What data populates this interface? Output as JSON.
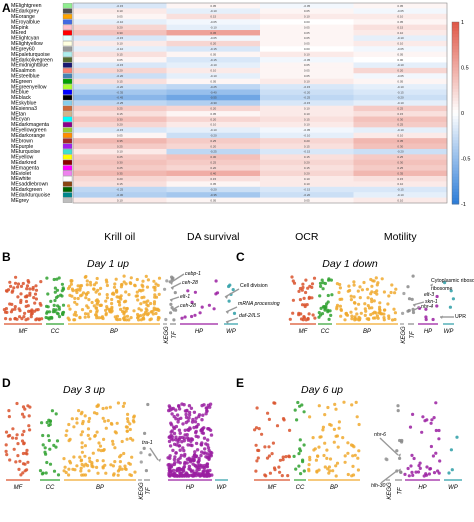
{
  "panel_letters": [
    "A",
    "B",
    "C",
    "D",
    "E"
  ],
  "colorbar_ticks": [
    "1",
    "0.5",
    "0",
    "-0.5",
    "-1"
  ],
  "colors": {
    "positive": "#e05a4a",
    "neutral": "#ffffff",
    "negative": "#2f7ed8",
    "MF": "#d9522b",
    "CC": "#2fa12f",
    "BP": "#f0a92e",
    "KEGG": "#999999",
    "TF": "#888888",
    "HP": "#9a1fa1",
    "WP": "#2b9da6"
  },
  "chart_data": [
    {
      "type": "heatmap",
      "panel": "A",
      "columns": [
        "Krill oil",
        "DA survival",
        "OCR",
        "Motility"
      ],
      "rows": [
        "MElightgreen",
        "MEdarkgrey",
        "MEorange",
        "MEroyalblue",
        "MEpink",
        "MEred",
        "MElightcyan",
        "MElightyellow",
        "MEgrey60",
        "MEpaleturquoise",
        "MEdarkolivegreen",
        "MEmidnightblue",
        "MEsalmon",
        "MEsteelblue",
        "MEgreen",
        "MEgreenyellow",
        "MEblue",
        "MEblack",
        "MEskyblue",
        "MEsienna3",
        "MEtan",
        "MEcyan",
        "MEdarkmagenta",
        "MEyellowgreen",
        "MEdarkorange",
        "MEbrown",
        "MEpurple",
        "MEturquoise",
        "MEyellow",
        "MEdarkred",
        "MEmagenta",
        "MEviolet",
        "MEwhite",
        "MEsaddlebrown",
        "MEdarkgreen",
        "MEdarkturquoise",
        "MEgrey"
      ],
      "row_colors": [
        "#90ee90",
        "#505050",
        "#ffa500",
        "#4169e1",
        "#ffc0cb",
        "#ff0000",
        "#e0ffff",
        "#ffffe0",
        "#999999",
        "#afeeee",
        "#556b2f",
        "#191970",
        "#fa8072",
        "#4682b4",
        "#00a000",
        "#adff2f",
        "#0000ff",
        "#000000",
        "#87ceeb",
        "#cd6839",
        "#d2b48c",
        "#00ffff",
        "#8b008b",
        "#9acd32",
        "#ff8c00",
        "#a52a2a",
        "#a020f0",
        "#40e0d0",
        "#ffff00",
        "#8b0000",
        "#ff00ff",
        "#ee82ee",
        "#ffffff",
        "#8b4513",
        "#006400",
        "#00868b",
        "#bebebe"
      ],
      "values": [
        [
          -0.15,
          0.05,
          -0.05,
          0.05
        ],
        [
          0.1,
          -0.1,
          0.05,
          -0.05
        ],
        [
          0.05,
          0.15,
          0.1,
          0.1
        ],
        [
          -0.1,
          -0.05,
          0.0,
          0.05
        ],
        [
          0.2,
          -0.1,
          0.05,
          0.15
        ],
        [
          0.3,
          0.45,
          0.05,
          0.1
        ],
        [
          -0.15,
          -0.05,
          0.05,
          -0.1
        ],
        [
          0.1,
          0.2,
          0.05,
          0.1
        ],
        [
          -0.1,
          -0.15,
          0.0,
          -0.05
        ],
        [
          0.15,
          0.05,
          0.1,
          0.05
        ],
        [
          0.05,
          -0.15,
          -0.05,
          0.0
        ],
        [
          -0.15,
          -0.1,
          0.05,
          -0.1
        ],
        [
          0.2,
          0.1,
          0.05,
          0.2
        ],
        [
          -0.2,
          -0.1,
          0.05,
          -0.05
        ],
        [
          0.15,
          0.05,
          0.1,
          0.05
        ],
        [
          -0.2,
          -0.25,
          -0.15,
          -0.1
        ],
        [
          -0.35,
          -0.4,
          -0.2,
          -0.15
        ],
        [
          -0.45,
          -0.55,
          -0.25,
          -0.2
        ],
        [
          -0.25,
          -0.3,
          -0.15,
          -0.1
        ],
        [
          0.25,
          0.2,
          0.1,
          0.25
        ],
        [
          0.15,
          0.05,
          0.1,
          0.15
        ],
        [
          0.3,
          0.2,
          0.15,
          0.3
        ],
        [
          0.2,
          0.1,
          0.1,
          0.25
        ],
        [
          -0.15,
          -0.1,
          -0.05,
          -0.1
        ],
        [
          0.05,
          -0.2,
          -0.1,
          0.1
        ],
        [
          0.35,
          0.25,
          0.2,
          0.35
        ],
        [
          0.25,
          0.2,
          0.15,
          0.3
        ],
        [
          0.1,
          -0.25,
          -0.15,
          -0.2
        ],
        [
          0.25,
          0.3,
          0.15,
          0.25
        ],
        [
          0.3,
          0.25,
          0.2,
          0.3
        ],
        [
          0.25,
          0.2,
          0.15,
          0.25
        ],
        [
          0.35,
          0.4,
          0.2,
          0.35
        ],
        [
          0.2,
          0.15,
          0.1,
          0.15
        ],
        [
          0.15,
          0.05,
          0.1,
          0.1
        ],
        [
          -0.25,
          -0.2,
          -0.15,
          -0.15
        ],
        [
          -0.3,
          -0.35,
          -0.2,
          -0.1
        ],
        [
          0.1,
          0.05,
          0.05,
          0.1
        ]
      ],
      "colorbar_range": [
        -1,
        1
      ]
    },
    {
      "type": "scatter",
      "panel": "B",
      "title": "Day 1 up",
      "categories": [
        "MF",
        "CC",
        "BP",
        "KEGG",
        "TF",
        "HP",
        "WP"
      ],
      "annotations": [
        "cebp-1",
        "ceh-28",
        "elt-1",
        "ceh-28",
        "Cell division",
        "mRNA processing",
        "daf-2/ILS"
      ]
    },
    {
      "type": "scatter",
      "panel": "C",
      "title": "Day 1 down",
      "categories": [
        "MF",
        "CC",
        "BP",
        "KEGG",
        "TF",
        "HP",
        "WP"
      ],
      "annotations": [
        "Cytoplasmic ribosome",
        "elt-3",
        "skn-1",
        "nhr-4",
        "UPR"
      ]
    },
    {
      "type": "scatter",
      "panel": "D",
      "title": "Day 3 up",
      "categories": [
        "MF",
        "CC",
        "BP",
        "KEGG",
        "TF",
        "HP",
        "WP"
      ],
      "annotations": [
        "tra-1"
      ]
    },
    {
      "type": "scatter",
      "panel": "E",
      "title": "Day 6 up",
      "categories": [
        "MF",
        "CC",
        "BP",
        "KEGG",
        "TF",
        "HP",
        "WP"
      ],
      "annotations": [
        "nhr-6",
        "hlh-30"
      ]
    }
  ]
}
